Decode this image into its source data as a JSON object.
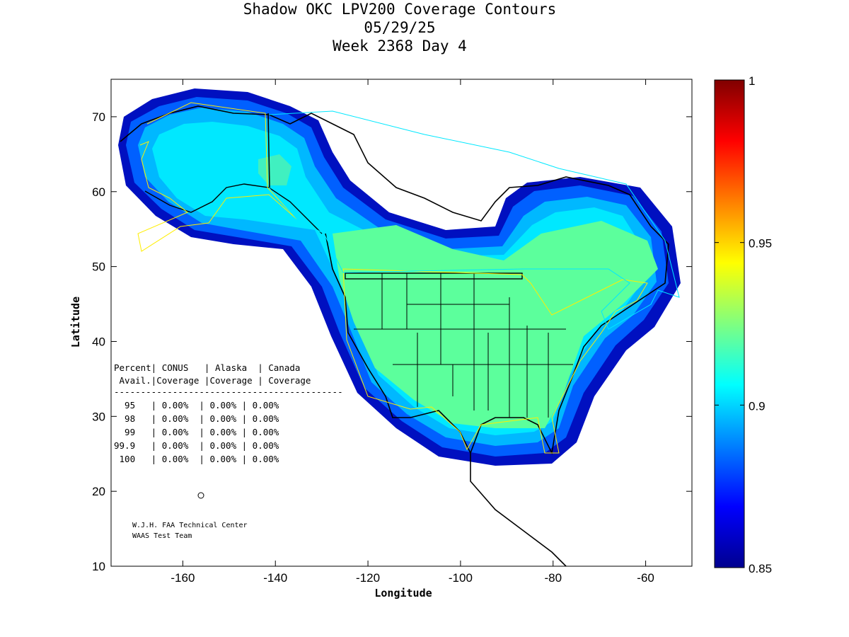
{
  "title": {
    "line1": "Shadow OKC LPV200 Coverage Contours",
    "line2": "05/29/25",
    "line3": "Week 2368 Day 4"
  },
  "axes": {
    "xlabel": "Longitude",
    "ylabel": "Latitude",
    "xlim": [
      -175.5,
      -50
    ],
    "ylim": [
      10,
      75
    ],
    "xticks": [
      "-160",
      "-140",
      "-120",
      "-100",
      "-80",
      "-60"
    ],
    "yticks": [
      "10",
      "20",
      "30",
      "40",
      "50",
      "60",
      "70"
    ]
  },
  "colorbar": {
    "min": 0.85,
    "max": 1,
    "ticks": [
      "0.85",
      "0.9",
      "0.95",
      "1"
    ],
    "colormap": "jet"
  },
  "table": {
    "header1": "Percent| CONUS   | Alaska  | Canada",
    "header2": " Avail.|Coverage |Coverage | Coverage",
    "rule": "-------------------------------------------",
    "rows": [
      "  95   | 0.00%  | 0.00% | 0.00%",
      "  98   | 0.00%  | 0.00% | 0.00%",
      "  99   | 0.00%  | 0.00% | 0.00%",
      "99.9   | 0.00%  | 0.00% | 0.00%",
      " 100   | 0.00%  | 0.00% | 0.00%"
    ]
  },
  "credits": {
    "line1": "W.J.H. FAA Technical Center",
    "line2": "WAAS Test Team"
  },
  "colors": {
    "dark_blue": "#0010c0",
    "blue": "#0060ff",
    "light_blue": "#00a8ff",
    "cyan": "#00e0ff",
    "green": "#5cff9c",
    "boundary_yellow": "#ffee00",
    "boundary_cyan": "#00e8ff"
  }
}
